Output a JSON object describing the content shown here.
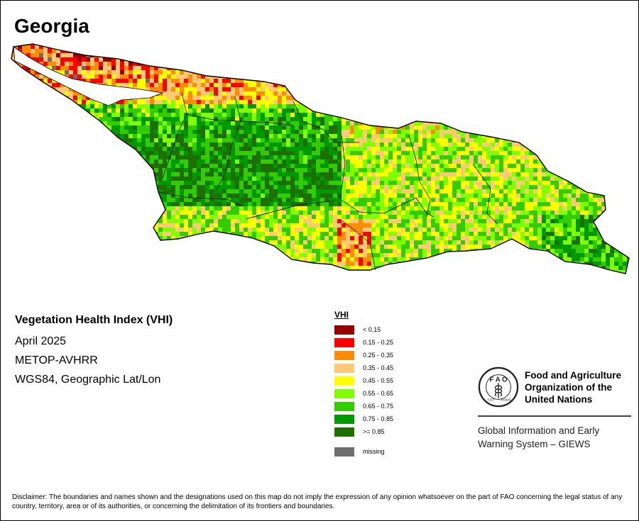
{
  "title": "Georgia",
  "info": {
    "index_name": "Vegetation Health Index (VHI)",
    "date": "April 2025",
    "sensor": "METOP-AVHRR",
    "projection": "WGS84, Geographic Lat/Lon"
  },
  "legend": {
    "title": "VHI",
    "classes": [
      {
        "label": "< 0.15",
        "color": "#990000"
      },
      {
        "label": "0.15 - 0.25",
        "color": "#ff0000"
      },
      {
        "label": "0.25 - 0.35",
        "color": "#ff8c00"
      },
      {
        "label": "0.35 - 0.45",
        "color": "#ffc878"
      },
      {
        "label": "0.45 - 0.55",
        "color": "#ffff00"
      },
      {
        "label": "0.55 - 0.65",
        "color": "#80ff00"
      },
      {
        "label": "0.65 - 0.75",
        "color": "#33cc00"
      },
      {
        "label": "0.75 - 0.85",
        "color": "#009900"
      },
      {
        "label": ">= 0.85",
        "color": "#1f6e00"
      }
    ],
    "missing": {
      "label": "missing",
      "color": "#6e6e6e"
    }
  },
  "org": {
    "name_line1": "Food and Agriculture",
    "name_line2": "Organization of the",
    "name_line3": "United Nations",
    "emblem_letters": "F A O",
    "emblem_motto_left": "FIAT",
    "emblem_motto_right": "PANIS",
    "program_line1": "Global Information and Early",
    "program_line2": "Warning System – GIEWS"
  },
  "disclaimer": "Disclaimer: The boundaries and names shown and the designations used on this map do not imply the expression of any opinion whatsoever on the part of FAO concerning the legal status of any country, territory, area or of its authorities, or concerning the delimitation of its frontiers and boundaries."
}
